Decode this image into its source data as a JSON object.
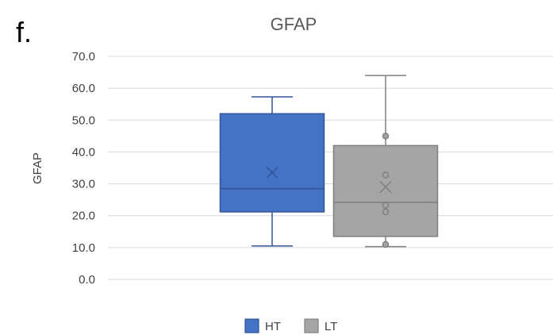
{
  "panel_label": "f.",
  "chart_data": {
    "type": "box",
    "title": "GFAP",
    "xlabel": "",
    "ylabel": "GFAP",
    "ylim": [
      0,
      70
    ],
    "yticks": [
      "0.0",
      "10.0",
      "20.0",
      "30.0",
      "40.0",
      "50.0",
      "60.0",
      "70.0"
    ],
    "grid": true,
    "legend_position": "bottom",
    "series": [
      {
        "name": "HT",
        "color": "#4472C4",
        "edge_color": "#2F5597",
        "min": 10.5,
        "q1": 21.2,
        "median": 28.5,
        "q3": 52.0,
        "max": 57.3,
        "mean": 33.5,
        "points": []
      },
      {
        "name": "LT",
        "color": "#A5A5A5",
        "edge_color": "#7F7F7F",
        "min": 10.3,
        "q1": 13.5,
        "median": 24.2,
        "q3": 42.0,
        "max": 64.0,
        "mean": 29.0,
        "points": [
          11.0,
          21.2,
          23.3,
          32.8,
          45.0
        ]
      }
    ]
  }
}
